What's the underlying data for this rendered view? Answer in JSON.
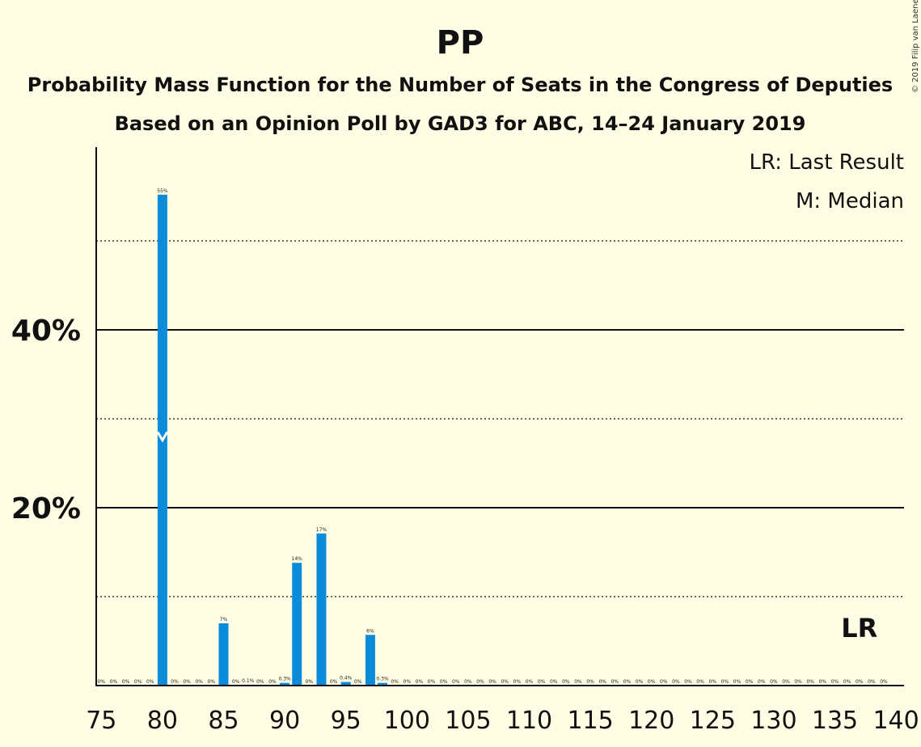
{
  "copyright": "© 2019 Filip van Laenen",
  "legend": {
    "last_result": "LR: Last Result",
    "median": "M: Median"
  },
  "lr_marker": "LR",
  "colors": {
    "bar": "#0A8CDB",
    "background": "#FFFDE4",
    "text": "#111111"
  },
  "chart_data": {
    "type": "bar",
    "title": "PP",
    "subtitle": "Probability Mass Function for the Number of Seats in the Congress of Deputies",
    "subtitle2": "Based on an Opinion Poll by GAD3 for ABC, 14–24 January 2019",
    "xlabel": "",
    "ylabel": "",
    "xlim": [
      75,
      140
    ],
    "ylim": [
      0,
      60
    ],
    "grid": {
      "solid": [
        20,
        40
      ],
      "dotted": [
        10,
        30,
        50
      ]
    },
    "ytick_labels": [
      {
        "value": 20,
        "label": "20%"
      },
      {
        "value": 40,
        "label": "40%"
      }
    ],
    "xticks": [
      75,
      80,
      85,
      90,
      95,
      100,
      105,
      110,
      115,
      120,
      125,
      130,
      135,
      140
    ],
    "median": 80,
    "last_result": 137,
    "x": [
      75,
      76,
      77,
      78,
      79,
      80,
      81,
      82,
      83,
      84,
      85,
      86,
      87,
      88,
      89,
      90,
      91,
      92,
      93,
      94,
      95,
      96,
      97,
      98,
      99,
      100,
      101,
      102,
      103,
      104,
      105,
      106,
      107,
      108,
      109,
      110,
      111,
      112,
      113,
      114,
      115,
      116,
      117,
      118,
      119,
      120,
      121,
      122,
      123,
      124,
      125,
      126,
      127,
      128,
      129,
      130,
      131,
      132,
      133,
      134,
      135,
      136,
      137,
      138,
      139
    ],
    "values": [
      0,
      0,
      0,
      0,
      0,
      55.2,
      0,
      0,
      0,
      0,
      7,
      0,
      0.1,
      0,
      0,
      0.3,
      13.8,
      0,
      17.1,
      0,
      0.4,
      0,
      5.7,
      0.3,
      0,
      0,
      0,
      0,
      0,
      0,
      0,
      0,
      0,
      0,
      0,
      0,
      0,
      0,
      0,
      0,
      0,
      0,
      0,
      0,
      0,
      0,
      0,
      0,
      0,
      0,
      0,
      0,
      0,
      0,
      0,
      0,
      0,
      0,
      0,
      0,
      0,
      0,
      0,
      0,
      0
    ],
    "labels": [
      "0%",
      "0%",
      "0%",
      "0%",
      "0%",
      "55%",
      "0%",
      "0%",
      "0%",
      "0%",
      "7%",
      "0%",
      "0.1%",
      "0%",
      "0%",
      "0.3%",
      "14%",
      "0%",
      "17%",
      "0%",
      "0.4%",
      "0%",
      "6%",
      "0.3%",
      "0%",
      "0%",
      "0%",
      "0%",
      "0%",
      "0%",
      "0%",
      "0%",
      "0%",
      "0%",
      "0%",
      "0%",
      "0%",
      "0%",
      "0%",
      "0%",
      "0%",
      "0%",
      "0%",
      "0%",
      "0%",
      "0%",
      "0%",
      "0%",
      "0%",
      "0%",
      "0%",
      "0%",
      "0%",
      "0%",
      "0%",
      "0%",
      "0%",
      "0%",
      "0%",
      "0%",
      "0%",
      "0%",
      "0%",
      "0%",
      "0%"
    ]
  }
}
